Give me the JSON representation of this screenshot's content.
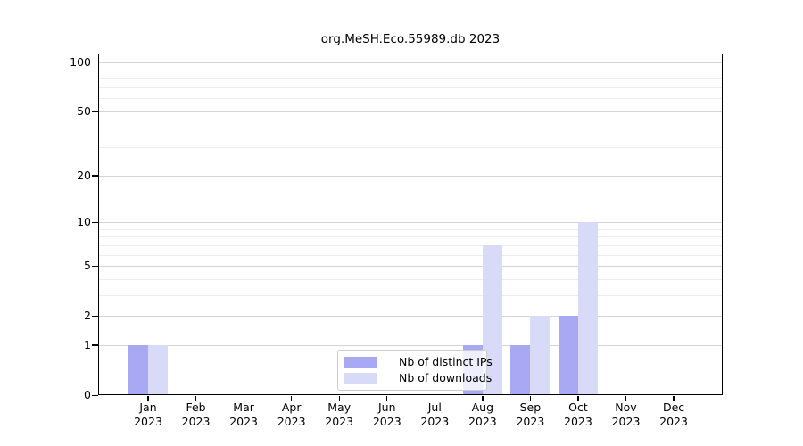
{
  "chart_data": {
    "type": "bar",
    "title": "org.MeSH.Eco.55989.db 2023",
    "categories": [
      "Jan",
      "Feb",
      "Mar",
      "Apr",
      "May",
      "Jun",
      "Jul",
      "Aug",
      "Sep",
      "Oct",
      "Nov",
      "Dec"
    ],
    "year": "2023",
    "series": [
      {
        "name": "Nb of distinct IPs",
        "color": "#a9a9f3",
        "values": [
          1,
          0,
          0,
          0,
          0,
          0,
          0,
          1,
          1,
          2,
          0,
          0
        ]
      },
      {
        "name": "Nb of downloads",
        "color": "#d9d9f8",
        "values": [
          1,
          0,
          0,
          0,
          0,
          0,
          0,
          7,
          2,
          10,
          0,
          0
        ]
      }
    ],
    "xlabel": "",
    "ylabel": "",
    "yscale": "log1p",
    "y_major_ticks": [
      0,
      1,
      2,
      5,
      10,
      20,
      50,
      100
    ],
    "y_minor_ticks": [
      3,
      4,
      6,
      7,
      8,
      9,
      30,
      40,
      60,
      70,
      80,
      90
    ],
    "ylim": [
      0,
      113
    ],
    "grid": true,
    "legend_position": "inside-bottom-center",
    "colors": {
      "grid_major": "#d4d4d4",
      "grid_minor": "#ededed",
      "frame": "#000000",
      "legend_border": "#cccccc",
      "background": "#ffffff"
    }
  }
}
